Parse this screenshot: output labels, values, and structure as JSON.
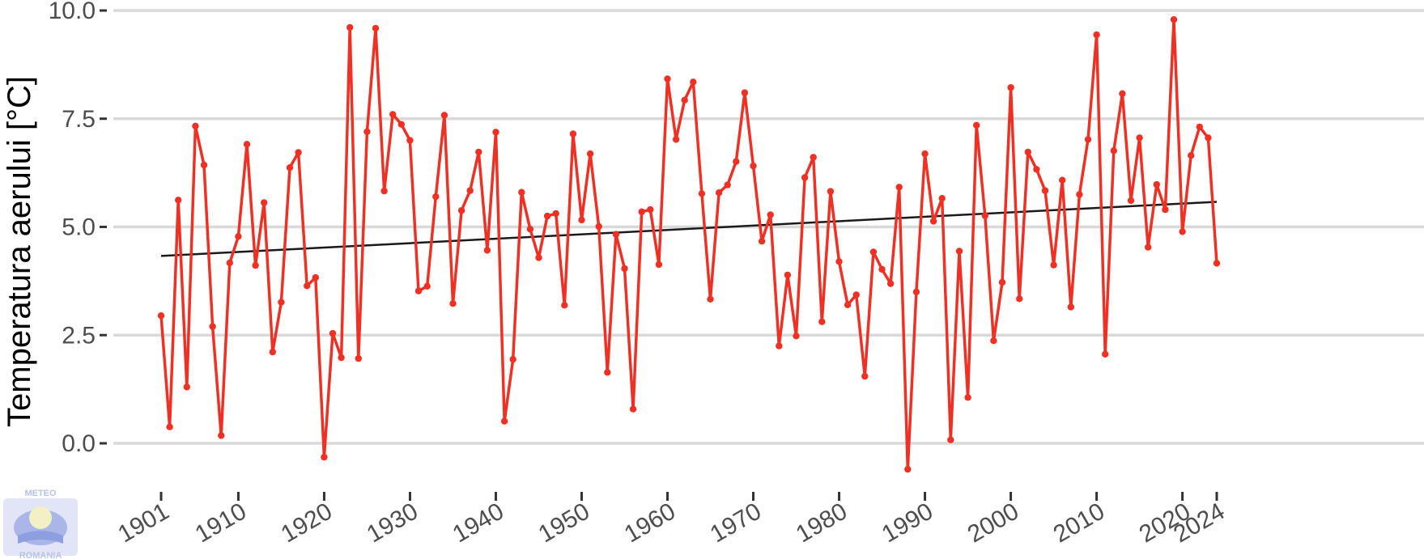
{
  "chart_data": {
    "type": "line",
    "title": "",
    "xlabel": "",
    "ylabel": "Temperatura aerului [°C]",
    "xlim": [
      1901,
      2024
    ],
    "ylim": [
      -0.7,
      10.0
    ],
    "y_ticks": [
      0.0,
      2.5,
      5.0,
      7.5,
      10.0
    ],
    "y_tick_labels": [
      "0.0",
      "2.5",
      "5.0",
      "7.5",
      "10.0"
    ],
    "x_ticks": [
      1901,
      1910,
      1920,
      1930,
      1940,
      1950,
      1960,
      1970,
      1980,
      1990,
      2000,
      2010,
      2020,
      2024
    ],
    "x_tick_labels": [
      "1901",
      "1910",
      "1920",
      "1930",
      "1940",
      "1950",
      "1960",
      "1970",
      "1980",
      "1990",
      "2000",
      "2010",
      "2020",
      "2024"
    ],
    "grid": "horizontal",
    "series": [
      {
        "color": "#ee3124",
        "x": [
          1901,
          1902,
          1903,
          1904,
          1905,
          1906,
          1907,
          1908,
          1909,
          1910,
          1911,
          1912,
          1913,
          1914,
          1915,
          1916,
          1917,
          1918,
          1919,
          1920,
          1921,
          1922,
          1923,
          1924,
          1925,
          1926,
          1927,
          1928,
          1929,
          1930,
          1931,
          1932,
          1933,
          1934,
          1935,
          1936,
          1937,
          1938,
          1939,
          1940,
          1941,
          1942,
          1943,
          1944,
          1945,
          1946,
          1947,
          1948,
          1949,
          1950,
          1951,
          1952,
          1953,
          1954,
          1955,
          1956,
          1957,
          1958,
          1959,
          1960,
          1961,
          1962,
          1963,
          1964,
          1965,
          1966,
          1967,
          1968,
          1969,
          1970,
          1971,
          1972,
          1973,
          1974,
          1975,
          1976,
          1977,
          1978,
          1979,
          1980,
          1981,
          1982,
          1983,
          1984,
          1985,
          1986,
          1987,
          1988,
          1989,
          1990,
          1991,
          1992,
          1993,
          1994,
          1995,
          1996,
          1997,
          1998,
          1999,
          2000,
          2001,
          2002,
          2003,
          2004,
          2005,
          2006,
          2007,
          2008,
          2009,
          2010,
          2011,
          2012,
          2013,
          2014,
          2015,
          2016,
          2017,
          2018,
          2019,
          2020,
          2021,
          2022,
          2023,
          2024
        ],
        "values": [
          2.95,
          0.38,
          5.62,
          1.3,
          7.33,
          6.43,
          2.7,
          0.18,
          4.17,
          4.78,
          6.91,
          4.11,
          5.56,
          2.11,
          3.26,
          6.37,
          6.72,
          3.64,
          3.83,
          -0.32,
          2.54,
          1.98,
          9.61,
          1.96,
          7.2,
          9.59,
          5.83,
          7.6,
          7.37,
          7.0,
          3.52,
          3.63,
          5.7,
          7.58,
          3.23,
          5.38,
          5.84,
          6.73,
          4.46,
          7.19,
          0.51,
          1.94,
          5.8,
          4.95,
          4.29,
          5.25,
          5.31,
          3.19,
          7.15,
          5.16,
          6.69,
          5.01,
          1.64,
          4.83,
          4.04,
          0.79,
          5.35,
          5.4,
          4.13,
          8.42,
          7.02,
          7.93,
          8.35,
          5.77,
          3.33,
          5.79,
          5.97,
          6.51,
          8.1,
          6.41,
          4.67,
          5.28,
          2.25,
          3.89,
          2.48,
          6.14,
          6.61,
          2.81,
          5.82,
          4.2,
          3.2,
          3.43,
          1.55,
          4.42,
          4.02,
          3.69,
          5.92,
          -0.6,
          3.5,
          6.69,
          5.13,
          5.66,
          0.08,
          4.44,
          1.06,
          7.35,
          5.26,
          2.37,
          3.72,
          8.22,
          3.34,
          6.73,
          6.33,
          5.84,
          4.12,
          6.08,
          3.15,
          5.75,
          7.02,
          9.44,
          2.06,
          6.76,
          8.08,
          5.61,
          7.06,
          4.53,
          5.98,
          5.4,
          9.79,
          4.89,
          6.65,
          7.31,
          7.06,
          4.16
        ]
      }
    ],
    "trend": {
      "color": "#1a1a1a",
      "x": [
        1901,
        2024
      ],
      "values": [
        4.33,
        5.58
      ]
    }
  },
  "logo": {
    "top_text": "METEO",
    "bottom_text": "ROMANIA"
  }
}
